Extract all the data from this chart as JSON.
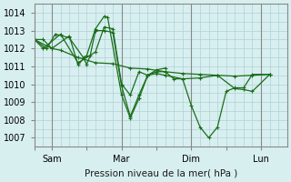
{
  "background_color": "#d8eff0",
  "grid_color": "#b0d0d8",
  "line_color": "#1a6e1a",
  "marker_color": "#1a6e1a",
  "ylabel": "Pression niveau de la mer( hPa )",
  "ylim": [
    1006.5,
    1014.5
  ],
  "yticks": [
    1007,
    1008,
    1009,
    1010,
    1011,
    1012,
    1013,
    1014
  ],
  "xtick_labels": [
    "",
    "Sam",
    "",
    "Mar",
    "",
    "Dim",
    "",
    "Lun"
  ],
  "xtick_positions": [
    0,
    1,
    3,
    5,
    7,
    9,
    11,
    13
  ],
  "xlim": [
    0,
    14.5
  ],
  "series": [
    [
      0.0,
      1012.5,
      0.5,
      1012.5,
      1.0,
      1012.0,
      1.5,
      1011.9,
      2.5,
      1011.5,
      3.5,
      1011.2,
      4.5,
      1011.15,
      5.5,
      1010.9,
      6.5,
      1010.85,
      7.5,
      1010.7,
      8.5,
      1010.6,
      9.5,
      1010.55,
      10.5,
      1010.5,
      11.5,
      1010.45,
      12.5,
      1010.5,
      13.5,
      1010.55
    ],
    [
      0.0,
      1012.5,
      0.7,
      1012.0,
      1.2,
      1012.8,
      2.0,
      1012.6,
      2.8,
      1011.5,
      3.0,
      1011.1,
      3.2,
      1011.6,
      3.5,
      1013.0,
      4.0,
      1013.0,
      4.5,
      1012.9,
      5.0,
      1009.9,
      5.5,
      1008.2,
      6.0,
      1009.4,
      6.5,
      1010.5,
      7.0,
      1010.7,
      7.5,
      1010.7,
      8.0,
      1010.3,
      8.5,
      1010.3,
      9.0,
      1008.8,
      9.5,
      1007.6,
      10.0,
      1007.0,
      10.5,
      1007.6,
      11.0,
      1009.6,
      11.5,
      1009.8,
      12.0,
      1009.8,
      12.5,
      1010.55,
      13.5,
      1010.55
    ],
    [
      0.0,
      1012.5,
      1.0,
      1012.0,
      2.0,
      1012.7,
      2.5,
      1011.1,
      3.0,
      1011.6,
      3.5,
      1013.1,
      4.0,
      1013.8,
      4.2,
      1013.75,
      5.0,
      1009.4,
      5.5,
      1008.1,
      6.0,
      1009.2,
      6.5,
      1010.5,
      7.0,
      1010.8,
      7.5,
      1010.9
    ],
    [
      0.0,
      1012.5,
      0.5,
      1012.0,
      1.5,
      1012.8,
      2.5,
      1011.2,
      3.5,
      1011.8,
      4.0,
      1013.2,
      4.5,
      1013.1,
      5.0,
      1010.0,
      5.5,
      1009.4,
      6.0,
      1010.7,
      6.5,
      1010.5,
      7.0,
      1010.6,
      7.5,
      1010.5,
      8.5,
      1010.3,
      9.5,
      1010.35,
      10.5,
      1010.5,
      11.5,
      1009.75,
      12.0,
      1009.7,
      12.5,
      1009.6,
      13.5,
      1010.55
    ]
  ]
}
